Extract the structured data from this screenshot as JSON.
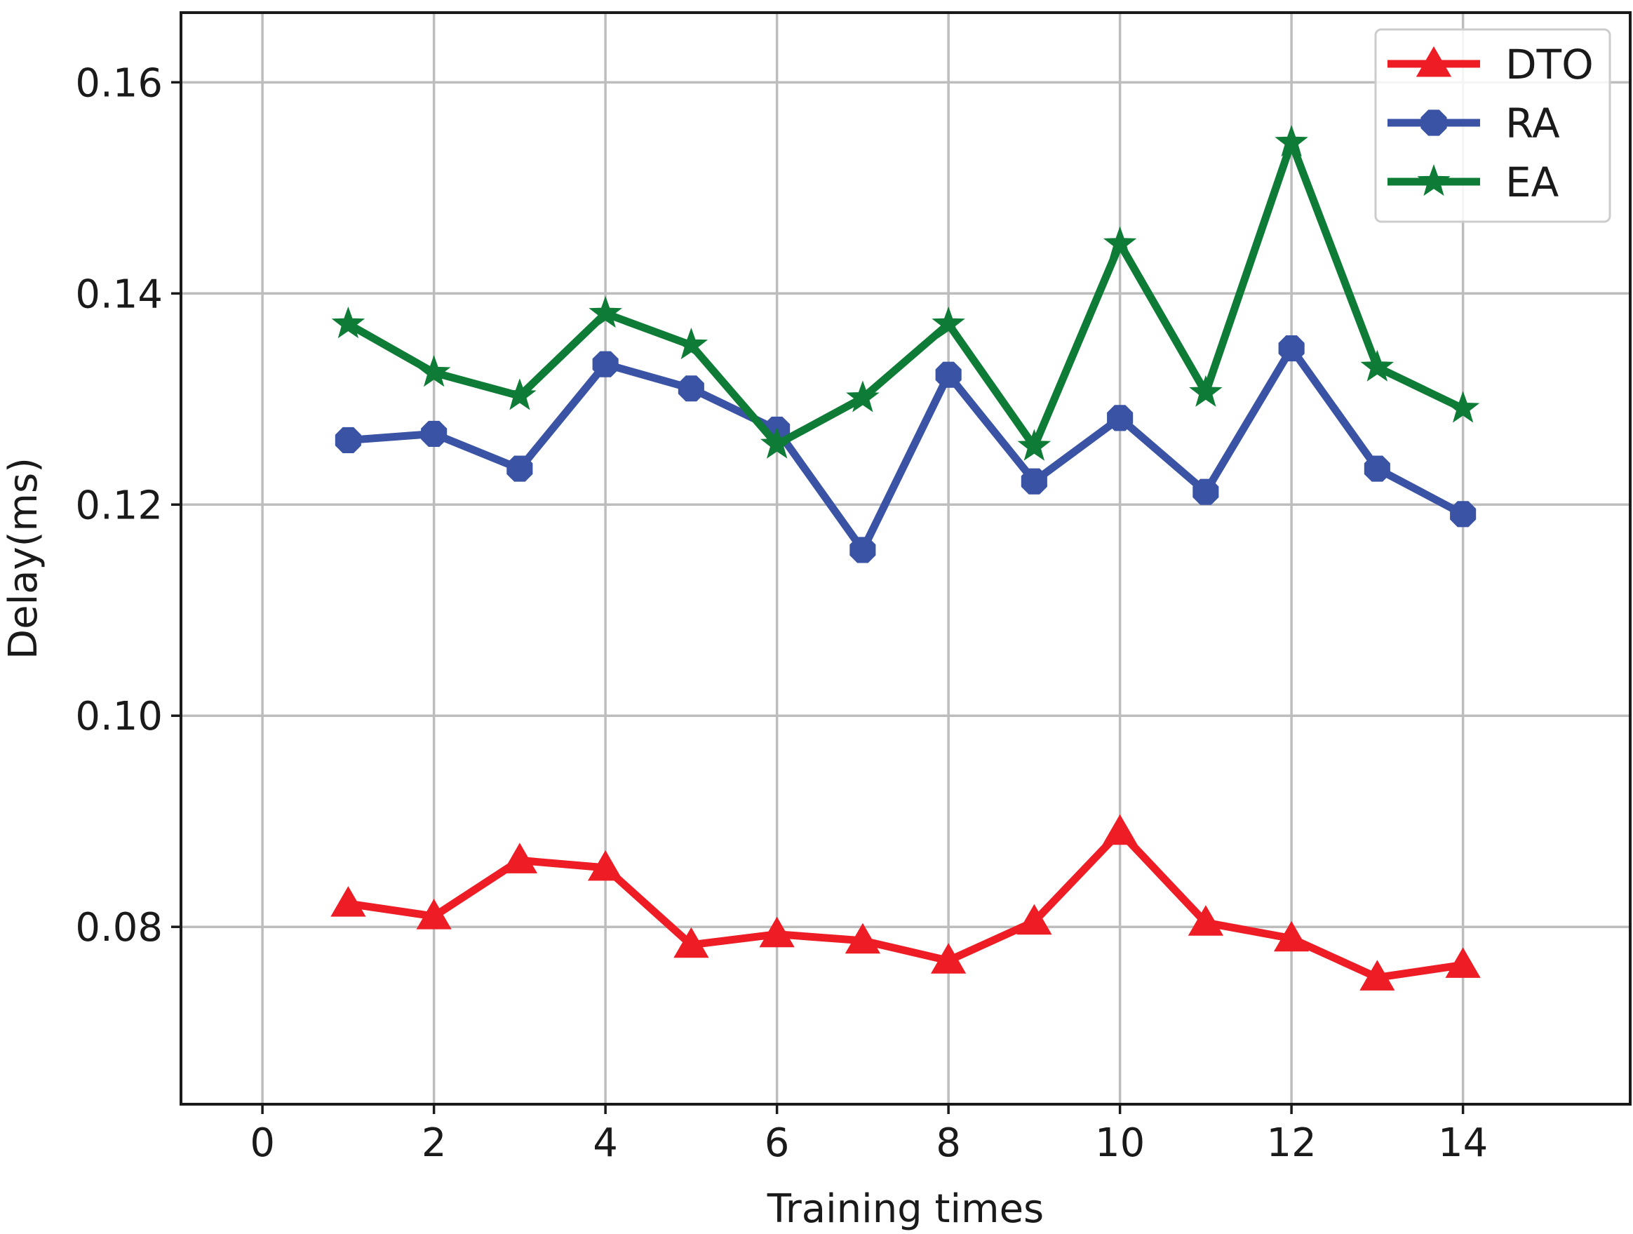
{
  "chart_data": {
    "type": "line",
    "title": "",
    "xlabel": "Training times",
    "ylabel": "Delay(ms)",
    "xlim": [
      -0.95,
      15.95
    ],
    "ylim": [
      0.0632,
      0.1666
    ],
    "xticks": [
      0,
      2,
      4,
      6,
      8,
      10,
      12,
      14
    ],
    "xtick_labels": [
      "0",
      "2",
      "4",
      "6",
      "8",
      "10",
      "12",
      "14"
    ],
    "yticks": [
      0.08,
      0.1,
      0.12,
      0.14,
      0.16
    ],
    "ytick_labels": [
      "0.08",
      "0.10",
      "0.12",
      "0.14",
      "0.16"
    ],
    "grid": true,
    "legend_position": "top-right",
    "x": [
      1,
      2,
      3,
      4,
      5,
      6,
      7,
      8,
      9,
      10,
      11,
      12,
      13,
      14
    ],
    "series": [
      {
        "name": "DTO",
        "color": "#ee1c24",
        "marker": "triangle",
        "values": [
          0.0822,
          0.081,
          0.0863,
          0.0856,
          0.0783,
          0.0793,
          0.0787,
          0.0768,
          0.0805,
          0.089,
          0.0804,
          0.0789,
          0.0752,
          0.0764
        ]
      },
      {
        "name": "RA",
        "color": "#3a53a4",
        "marker": "octagon",
        "values": [
          0.1261,
          0.1267,
          0.1234,
          0.1333,
          0.131,
          0.1271,
          0.1157,
          0.1323,
          0.1222,
          0.1282,
          0.1212,
          0.1348,
          0.1234,
          0.1191
        ]
      },
      {
        "name": "EA",
        "color": "#0e7c36",
        "marker": "star",
        "values": [
          0.1371,
          0.1325,
          0.1303,
          0.1381,
          0.1351,
          0.1257,
          0.1301,
          0.1371,
          0.1255,
          0.1447,
          0.1306,
          0.1543,
          0.133,
          0.1291
        ]
      }
    ]
  }
}
